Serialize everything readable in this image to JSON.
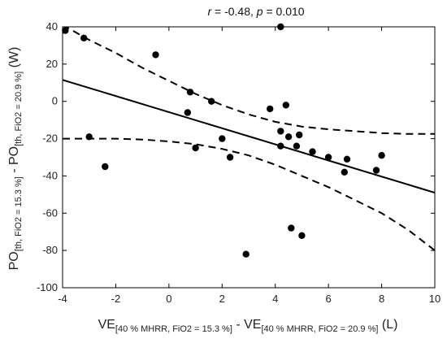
{
  "chart_data": {
    "type": "scatter",
    "title_r_symbol": "r",
    "title_r_text": " = -0.48, ",
    "title_p_symbol": "p",
    "title_p_text": " = 0.010",
    "xlabel": {
      "main_a": "VE",
      "sub_a": "[40 % MHRR, FiO2 = 15.3 %]",
      "sep": " - VE",
      "sub_b": "[40 % MHRR, FiO2 = 20.9 %]",
      "unit": " (L)"
    },
    "ylabel": {
      "main_a": "PO",
      "sub_a": "[th, FiO2 = 15.3 %]",
      "sep": " - PO",
      "sub_b": "[th, FiO2 = 20.9 %]",
      "unit": " (W)"
    },
    "xlim": [
      -4,
      10
    ],
    "ylim": [
      -100,
      40
    ],
    "xticks": [
      -4,
      -2,
      0,
      2,
      4,
      6,
      8,
      10
    ],
    "yticks": [
      -100,
      -80,
      -60,
      -40,
      -20,
      0,
      20,
      40
    ],
    "points": [
      {
        "x": -3.9,
        "y": 38
      },
      {
        "x": -3.2,
        "y": 34
      },
      {
        "x": -3.0,
        "y": -19
      },
      {
        "x": -2.4,
        "y": -35
      },
      {
        "x": -0.5,
        "y": 25
      },
      {
        "x": 0.7,
        "y": -6
      },
      {
        "x": 0.8,
        "y": 5
      },
      {
        "x": 1.0,
        "y": -25
      },
      {
        "x": 1.6,
        "y": 0
      },
      {
        "x": 2.0,
        "y": -20
      },
      {
        "x": 2.3,
        "y": -30
      },
      {
        "x": 2.9,
        "y": -82
      },
      {
        "x": 3.8,
        "y": -4
      },
      {
        "x": 4.2,
        "y": 40
      },
      {
        "x": 4.2,
        "y": -16
      },
      {
        "x": 4.2,
        "y": -24
      },
      {
        "x": 4.4,
        "y": -2
      },
      {
        "x": 4.5,
        "y": -19
      },
      {
        "x": 4.6,
        "y": -68
      },
      {
        "x": 4.8,
        "y": -24
      },
      {
        "x": 4.9,
        "y": -18
      },
      {
        "x": 5.0,
        "y": -72
      },
      {
        "x": 5.4,
        "y": -27
      },
      {
        "x": 6.0,
        "y": -30
      },
      {
        "x": 6.6,
        "y": -38
      },
      {
        "x": 6.7,
        "y": -31
      },
      {
        "x": 7.8,
        "y": -37
      },
      {
        "x": 8.0,
        "y": -29
      }
    ],
    "regression_line": {
      "x": [
        -4,
        10
      ],
      "y": [
        11.5,
        -49
      ]
    },
    "ci_upper": {
      "x": [
        -4,
        -3,
        -2,
        -1,
        0,
        1,
        2,
        3,
        4,
        5,
        6,
        7,
        8,
        9,
        10
      ],
      "y": [
        41,
        33,
        26,
        18,
        11,
        4,
        -2,
        -7,
        -11,
        -13.5,
        -15,
        -16,
        -17,
        -17.5,
        -17.5
      ]
    },
    "ci_lower": {
      "x": [
        -4,
        -3,
        -2,
        -1,
        0,
        1,
        2,
        3,
        4,
        5,
        6,
        7,
        8,
        9,
        10
      ],
      "y": [
        -20,
        -20,
        -20,
        -20.5,
        -21.5,
        -23,
        -25.5,
        -29,
        -34,
        -40,
        -46,
        -53,
        -60,
        -69,
        -80
      ]
    },
    "grid": false,
    "legend": "none"
  }
}
